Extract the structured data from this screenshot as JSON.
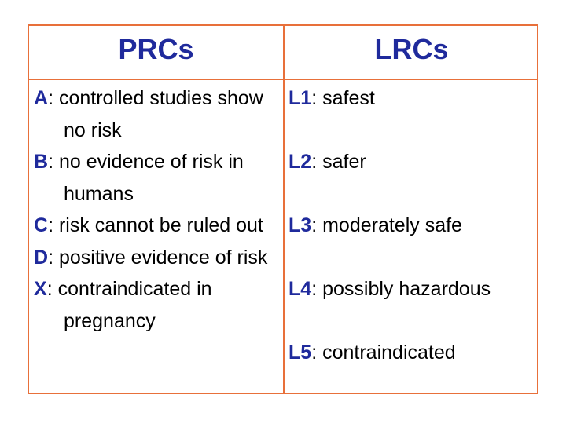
{
  "table": {
    "headers": [
      "PRCs",
      "LRCs"
    ],
    "prcs": [
      {
        "code": "A",
        "text": "controlled studies show no risk"
      },
      {
        "code": "B",
        "text": "no evidence of risk in humans"
      },
      {
        "code": "C",
        "text": "risk cannot be ruled out"
      },
      {
        "code": "D",
        "text": "positive evidence of risk"
      },
      {
        "code": "X",
        "text": "contraindicated in pregnancy"
      }
    ],
    "lrcs": [
      {
        "code": "L1",
        "text": "safest"
      },
      {
        "code": "L2",
        "text": "safer"
      },
      {
        "code": "L3",
        "text": "moderately safe"
      },
      {
        "code": "L4",
        "text": "possibly hazardous"
      },
      {
        "code": "L5",
        "text": "contraindicated"
      }
    ]
  },
  "colors": {
    "border": "#e8703a",
    "heading": "#1f2a9c",
    "code": "#1f2a9c",
    "text": "#000000"
  }
}
